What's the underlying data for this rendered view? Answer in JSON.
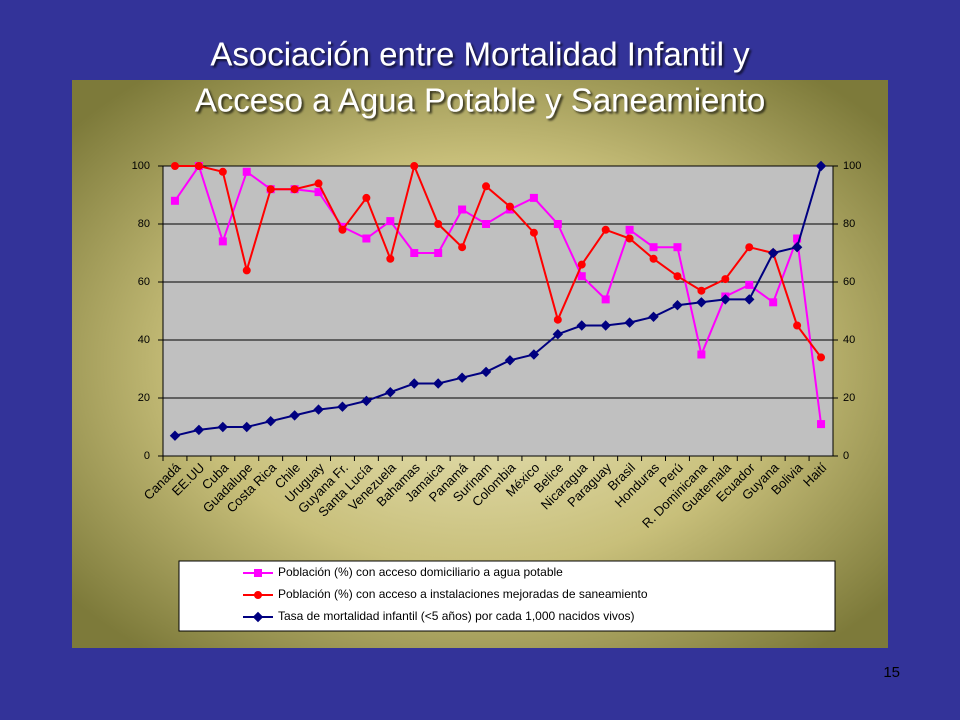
{
  "page_number": "15",
  "chart_data": {
    "type": "line",
    "title": [
      "Asociación entre Mortalidad Infantil y",
      "Acceso a Agua Potable y Saneamiento"
    ],
    "categories": [
      "Canadá",
      "EE.UU",
      "Cuba",
      "Guadalupe",
      "Costa Rica",
      "Chile",
      "Uruguay",
      "Guyana Fr.",
      "Santa Lucía",
      "Venezuela",
      "Bahamas",
      "Jamaica",
      "Panamá",
      "Surinam",
      "Colombia",
      "México",
      "Belice",
      "Nicaragua",
      "Paraguay",
      "Brasil",
      "Honduras",
      "Perú",
      "R. Dominicana",
      "Guatemala",
      "Ecuador",
      "Guyana",
      "Bolivia",
      "Haití"
    ],
    "series": [
      {
        "name": "Población (%) con acceso domiciliario a agua potable",
        "color": "#ff00ff",
        "marker": "square",
        "values": [
          88,
          100,
          74,
          98,
          92,
          92,
          91,
          79,
          75,
          81,
          70,
          70,
          85,
          80,
          85,
          89,
          80,
          62,
          54,
          78,
          72,
          72,
          35,
          55,
          59,
          53,
          75,
          11
        ]
      },
      {
        "name": "Población (%) con acceso a instalaciones mejoradas de saneamiento",
        "color": "#ff0000",
        "marker": "circle",
        "values": [
          100,
          100,
          98,
          64,
          92,
          92,
          94,
          78,
          89,
          68,
          100,
          80,
          72,
          93,
          86,
          77,
          47,
          66,
          78,
          75,
          68,
          62,
          57,
          61,
          72,
          70,
          45,
          34
        ]
      },
      {
        "name": "Tasa de mortalidad infantil (<5 años) por cada 1,000 nacidos vivos)",
        "color": "#000080",
        "marker": "diamond",
        "axis": "y2",
        "values": [
          7,
          9,
          10,
          10,
          12,
          14,
          16,
          17,
          19,
          22,
          25,
          25,
          27,
          29,
          33,
          35,
          42,
          45,
          45,
          46,
          48,
          52,
          53,
          54,
          54,
          70,
          72,
          100
        ]
      }
    ],
    "ylim": [
      0,
      100
    ],
    "yticks": [
      0,
      20,
      40,
      60,
      80,
      100
    ],
    "y2lim": [
      0,
      100
    ],
    "y2ticks": [
      0,
      20,
      40,
      60,
      80,
      100
    ],
    "grid": true
  }
}
